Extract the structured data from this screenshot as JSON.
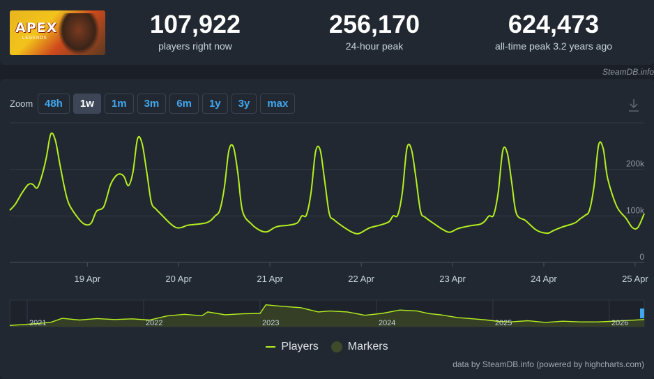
{
  "game": {
    "logo_title": "APEX",
    "logo_subtitle": "LEGENDS"
  },
  "stats": [
    {
      "value": "107,922",
      "label": "players right now"
    },
    {
      "value": "256,170",
      "label": "24-hour peak"
    },
    {
      "value": "624,473",
      "label": "all-time peak 3.2 years ago"
    }
  ],
  "watermark": "SteamDB.info",
  "zoom": {
    "label": "Zoom",
    "buttons": [
      "48h",
      "1w",
      "1m",
      "3m",
      "6m",
      "1y",
      "3y",
      "max"
    ],
    "active": "1w"
  },
  "colors": {
    "series": "#b4f020",
    "background": "#1b2028",
    "panel": "#222831",
    "accent": "#41a8f0"
  },
  "icons": {
    "download": "download-icon"
  },
  "legend": {
    "players": "Players",
    "markers": "Markers"
  },
  "credits": "data by SteamDB.info (powered by highcharts.com)",
  "chart_data": [
    {
      "type": "line",
      "title": "",
      "xlabel": "",
      "ylabel": "",
      "x_ticks": [
        "19 Apr",
        "20 Apr",
        "21 Apr",
        "22 Apr",
        "23 Apr",
        "24 Apr",
        "25 Apr"
      ],
      "y_ticks": [
        "0",
        "100k",
        "200k"
      ],
      "ylim": [
        0,
        300000
      ],
      "x_range_days": [
        -0.85,
        6.1
      ],
      "grid": true,
      "series": [
        {
          "name": "Players",
          "x_days": [
            -0.85,
            -0.79,
            -0.72,
            -0.65,
            -0.6,
            -0.55,
            -0.5,
            -0.45,
            -0.4,
            -0.35,
            -0.3,
            -0.25,
            -0.2,
            -0.1,
            -0.03,
            0.04,
            0.1,
            0.18,
            0.25,
            0.3,
            0.35,
            0.4,
            0.45,
            0.5,
            0.55,
            0.6,
            0.65,
            0.7,
            0.75,
            0.8,
            0.9,
            0.97,
            1.03,
            1.1,
            1.2,
            1.3,
            1.35,
            1.4,
            1.45,
            1.5,
            1.55,
            1.6,
            1.65,
            1.7,
            1.8,
            1.9,
            1.97,
            2.05,
            2.1,
            2.2,
            2.3,
            2.35,
            2.4,
            2.45,
            2.5,
            2.55,
            2.6,
            2.65,
            2.7,
            2.8,
            2.9,
            2.97,
            3.05,
            3.1,
            3.2,
            3.3,
            3.35,
            3.4,
            3.45,
            3.5,
            3.55,
            3.6,
            3.65,
            3.7,
            3.8,
            3.9,
            3.97,
            4.05,
            4.1,
            4.2,
            4.3,
            4.35,
            4.4,
            4.45,
            4.5,
            4.55,
            4.6,
            4.65,
            4.7,
            4.8,
            4.9,
            4.97,
            5.05,
            5.1,
            5.2,
            5.3,
            5.35,
            5.4,
            5.45,
            5.5,
            5.55,
            5.6,
            5.65,
            5.7,
            5.8,
            5.9,
            5.97,
            6.03,
            6.1
          ],
          "values": [
            112000,
            125000,
            148000,
            167000,
            168000,
            160000,
            185000,
            225000,
            276000,
            262000,
            210000,
            160000,
            125000,
            95000,
            82000,
            84000,
            110000,
            120000,
            165000,
            183000,
            190000,
            185000,
            165000,
            195000,
            266000,
            255000,
            195000,
            130000,
            115000,
            105000,
            85000,
            75000,
            75000,
            80000,
            82000,
            85000,
            90000,
            100000,
            112000,
            160000,
            240000,
            248000,
            190000,
            110000,
            82000,
            68000,
            66000,
            75000,
            78000,
            80000,
            85000,
            100000,
            102000,
            150000,
            238000,
            242000,
            175000,
            105000,
            92000,
            77000,
            65000,
            62000,
            70000,
            75000,
            80000,
            87000,
            100000,
            102000,
            150000,
            245000,
            243000,
            180000,
            110000,
            97000,
            83000,
            70000,
            65000,
            72000,
            75000,
            79000,
            82000,
            88000,
            100000,
            102000,
            150000,
            240000,
            235000,
            170000,
            105000,
            90000,
            72000,
            65000,
            63000,
            68000,
            76000,
            82000,
            86000,
            94000,
            101000,
            112000,
            164000,
            252000,
            245000,
            180000,
            120000,
            95000,
            75000,
            75000,
            105000
          ]
        }
      ]
    },
    {
      "type": "area",
      "title": "",
      "xlabel": "",
      "ylabel": "",
      "x_ticks": [
        "2021",
        "2022",
        "2023",
        "2024",
        "2025",
        "2026"
      ],
      "x_range_years": [
        2020.85,
        2026.3
      ],
      "series": [
        {
          "name": "Players",
          "x_years": [
            2020.85,
            2021.0,
            2021.2,
            2021.3,
            2021.45,
            2021.6,
            2021.75,
            2021.9,
            2022.05,
            2022.2,
            2022.35,
            2022.5,
            2022.55,
            2022.7,
            2022.85,
            2023.0,
            2023.05,
            2023.2,
            2023.35,
            2023.5,
            2023.6,
            2023.75,
            2023.9,
            2024.05,
            2024.2,
            2024.35,
            2024.45,
            2024.55,
            2024.7,
            2024.85,
            2024.95,
            2025.05,
            2025.15,
            2025.3,
            2025.45,
            2025.6,
            2025.75,
            2025.9,
            2026.0,
            2026.15,
            2026.3
          ],
          "values": [
            0.05,
            0.1,
            0.18,
            0.35,
            0.28,
            0.34,
            0.3,
            0.33,
            0.28,
            0.45,
            0.52,
            0.46,
            0.62,
            0.5,
            0.54,
            0.56,
            0.92,
            0.85,
            0.8,
            0.62,
            0.66,
            0.62,
            0.48,
            0.56,
            0.7,
            0.66,
            0.55,
            0.5,
            0.38,
            0.32,
            0.28,
            0.22,
            0.2,
            0.25,
            0.18,
            0.23,
            0.2,
            0.2,
            0.22,
            0.26,
            0.3
          ]
        }
      ]
    }
  ]
}
